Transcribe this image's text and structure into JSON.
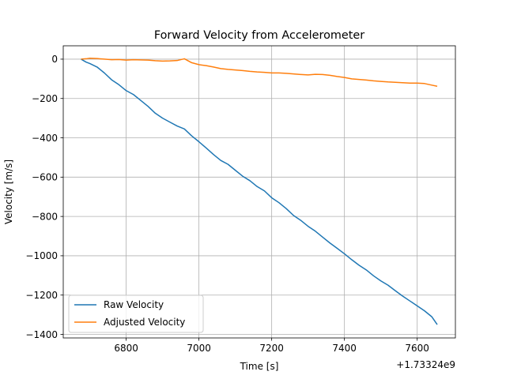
{
  "chart_data": {
    "type": "line",
    "title": "Forward Velocity from Accelerometer",
    "xlabel": "Time [s]",
    "ylabel": "Velocity [m/s]",
    "x_offset_label": "+1.73324e9",
    "xlim": [
      6627,
      7705
    ],
    "ylim": [
      -1418,
      68
    ],
    "xticks": [
      6800,
      7000,
      7200,
      7400,
      7600
    ],
    "yticks": [
      0,
      -200,
      -400,
      -600,
      -800,
      -1000,
      -1200,
      -1400
    ],
    "xtick_labels": [
      "6800",
      "7000",
      "7200",
      "7400",
      "7600"
    ],
    "ytick_labels": [
      "0",
      "−200",
      "−400",
      "−600",
      "−800",
      "−1000",
      "−1200",
      "−1400"
    ],
    "grid": true,
    "legend_position": "lower-left",
    "series": [
      {
        "name": "Raw Velocity",
        "color": "#1f77b4",
        "x": [
          6676,
          6690,
          6700,
          6720,
          6740,
          6760,
          6780,
          6800,
          6820,
          6840,
          6860,
          6880,
          6900,
          6920,
          6940,
          6960,
          6980,
          7000,
          7020,
          7040,
          7060,
          7080,
          7100,
          7120,
          7140,
          7160,
          7180,
          7200,
          7220,
          7240,
          7260,
          7280,
          7300,
          7320,
          7340,
          7360,
          7380,
          7400,
          7420,
          7440,
          7460,
          7480,
          7500,
          7520,
          7540,
          7560,
          7580,
          7600,
          7620,
          7640,
          7655
        ],
        "y": [
          0,
          -15,
          -22,
          -40,
          -70,
          -105,
          -130,
          -160,
          -180,
          -210,
          -240,
          -275,
          -300,
          -320,
          -340,
          -355,
          -390,
          -420,
          -452,
          -485,
          -515,
          -535,
          -565,
          -595,
          -618,
          -648,
          -670,
          -705,
          -730,
          -760,
          -795,
          -820,
          -850,
          -875,
          -905,
          -935,
          -962,
          -990,
          -1020,
          -1048,
          -1072,
          -1102,
          -1128,
          -1150,
          -1178,
          -1205,
          -1230,
          -1255,
          -1280,
          -1310,
          -1350
        ]
      },
      {
        "name": "Adjusted Velocity",
        "color": "#ff7f0e",
        "x": [
          6676,
          6690,
          6700,
          6720,
          6740,
          6760,
          6780,
          6800,
          6820,
          6840,
          6860,
          6880,
          6900,
          6920,
          6940,
          6960,
          6980,
          7000,
          7020,
          7040,
          7060,
          7080,
          7100,
          7120,
          7140,
          7160,
          7180,
          7200,
          7220,
          7240,
          7260,
          7280,
          7300,
          7320,
          7340,
          7360,
          7380,
          7400,
          7420,
          7440,
          7460,
          7480,
          7500,
          7520,
          7540,
          7560,
          7580,
          7600,
          7620,
          7640,
          7655
        ],
        "y": [
          0,
          2,
          5,
          3,
          0,
          -3,
          -2,
          -5,
          -3,
          -4,
          -5,
          -8,
          -10,
          -9,
          -7,
          2,
          -18,
          -28,
          -33,
          -40,
          -48,
          -52,
          -55,
          -58,
          -62,
          -65,
          -67,
          -70,
          -70,
          -72,
          -75,
          -78,
          -80,
          -77,
          -78,
          -82,
          -88,
          -93,
          -100,
          -103,
          -106,
          -110,
          -113,
          -116,
          -118,
          -120,
          -122,
          -122,
          -124,
          -132,
          -138
        ]
      }
    ]
  }
}
